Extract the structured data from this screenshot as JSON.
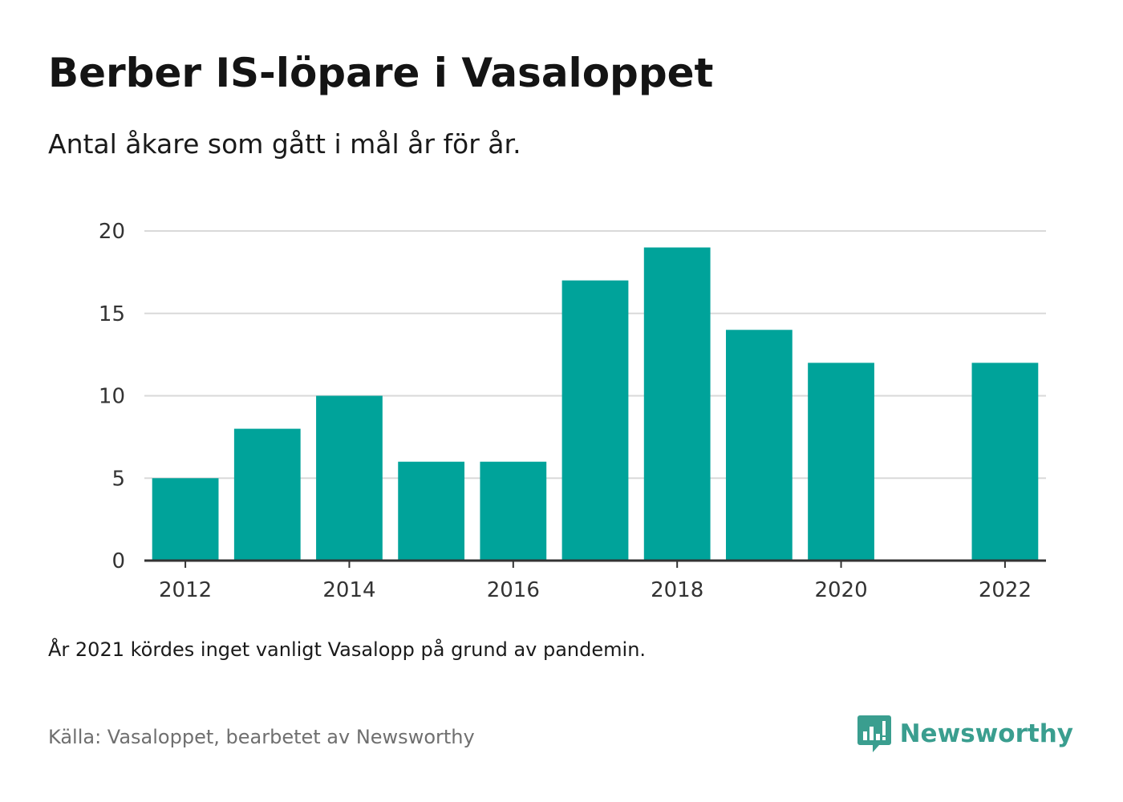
{
  "header": {
    "title": "Berber IS-löpare i Vasaloppet",
    "subtitle": "Antal åkare som gått i mål år för år."
  },
  "footer": {
    "note": "År 2021 kördes inget vanligt Vasalopp på grund av pandemin.",
    "source": "Källa: Vasaloppet, bearbetet av Newsworthy",
    "brand": "Newsworthy"
  },
  "colors": {
    "bar": "#00a39a",
    "brand": "#3a9e8f",
    "grid": "#d9d9d9",
    "axis": "#333333"
  },
  "icons": {
    "brand_logo": "newsworthy-logo-icon"
  },
  "chart_data": {
    "type": "bar",
    "title": "Berber IS-löpare i Vasaloppet",
    "subtitle": "Antal åkare som gått i mål år för år.",
    "xlabel": "",
    "ylabel": "",
    "x": [
      2012,
      2013,
      2014,
      2015,
      2016,
      2017,
      2018,
      2019,
      2020,
      2022
    ],
    "values": [
      5,
      8,
      10,
      6,
      6,
      17,
      19,
      14,
      12,
      12
    ],
    "xlim": [
      2011.5,
      2022.5
    ],
    "ylim": [
      0,
      20
    ],
    "yticks": [
      0,
      5,
      10,
      15,
      20
    ],
    "xticks": [
      2012,
      2014,
      2016,
      2018,
      2020,
      2022
    ],
    "grid": true,
    "legend": "none"
  }
}
